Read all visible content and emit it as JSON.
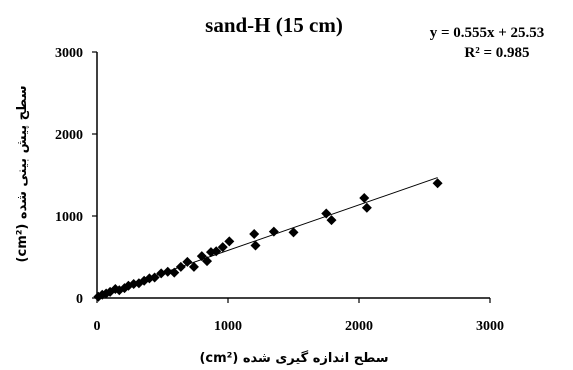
{
  "chart_data": {
    "type": "scatter",
    "title": "sand-H (15 cm)",
    "equation": "y = 0.555x + 25.53",
    "r_squared": "R² = 0.985",
    "xlabel": "سطح اندازه گیری شده (cm²)",
    "ylabel": "سطح پیش بینی شده (cm²)",
    "xlim": [
      0,
      3000
    ],
    "ylim": [
      0,
      3000
    ],
    "xticks": [
      "0",
      "1000",
      "2000",
      "3000"
    ],
    "yticks": [
      "0",
      "1000",
      "2000",
      "3000"
    ],
    "grid": false,
    "marker": "diamond",
    "colors": {
      "points": "#000000",
      "trendline": "#000000",
      "axis": "#000000"
    },
    "trendline": {
      "slope": 0.555,
      "intercept": 25.53,
      "x_range": [
        0,
        2600
      ]
    },
    "x": [
      10,
      40,
      70,
      100,
      140,
      170,
      210,
      240,
      280,
      320,
      360,
      400,
      440,
      490,
      540,
      590,
      640,
      690,
      740,
      800,
      840,
      870,
      910,
      960,
      1010,
      1200,
      1210,
      1350,
      1500,
      1750,
      1790,
      2040,
      2060,
      2600
    ],
    "y": [
      15,
      40,
      55,
      75,
      110,
      95,
      120,
      150,
      170,
      180,
      210,
      240,
      250,
      300,
      320,
      310,
      380,
      440,
      380,
      510,
      450,
      560,
      570,
      620,
      690,
      780,
      640,
      810,
      800,
      1030,
      950,
      1220,
      1100,
      1400
    ]
  }
}
